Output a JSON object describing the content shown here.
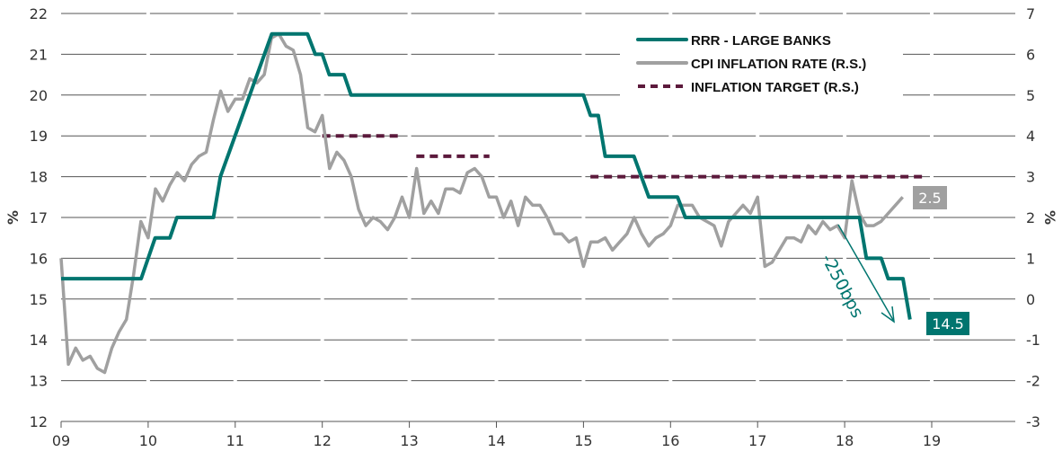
{
  "chart_data": {
    "type": "line",
    "xlabel": "",
    "ylabel_left": "%",
    "ylabel_right": "%",
    "x_ticks": [
      "09",
      "10",
      "11",
      "12",
      "13",
      "14",
      "15",
      "16",
      "17",
      "18",
      "19"
    ],
    "x_range": [
      2009,
      2019
    ],
    "y_left_range": [
      12,
      22
    ],
    "y_left_ticks": [
      "12",
      "13",
      "14",
      "15",
      "16",
      "17",
      "18",
      "19",
      "20",
      "21",
      "22"
    ],
    "y_right_range": [
      -3,
      7
    ],
    "y_right_ticks": [
      "-3",
      "-2",
      "-1",
      "0",
      "1",
      "2",
      "3",
      "4",
      "5",
      "6",
      "7"
    ],
    "grid": true,
    "legend_position": "top-right",
    "series": [
      {
        "name": "RRR - LARGE BANKS",
        "axis": "left",
        "color": "#00756f",
        "points": [
          [
            2009.0,
            15.5
          ],
          [
            2009.92,
            15.5
          ],
          [
            2010.08,
            16.5
          ],
          [
            2010.25,
            16.5
          ],
          [
            2010.33,
            17
          ],
          [
            2010.75,
            17
          ],
          [
            2010.83,
            18
          ],
          [
            2011.42,
            21.5
          ],
          [
            2011.83,
            21.5
          ],
          [
            2011.92,
            21
          ],
          [
            2012.0,
            21
          ],
          [
            2012.08,
            20.5
          ],
          [
            2012.25,
            20.5
          ],
          [
            2012.33,
            20
          ],
          [
            2015.0,
            20
          ],
          [
            2015.08,
            19.5
          ],
          [
            2015.17,
            19.5
          ],
          [
            2015.25,
            18.5
          ],
          [
            2015.58,
            18.5
          ],
          [
            2015.75,
            17.5
          ],
          [
            2016.08,
            17.5
          ],
          [
            2016.17,
            17
          ],
          [
            2018.17,
            17
          ],
          [
            2018.25,
            16
          ],
          [
            2018.42,
            16
          ],
          [
            2018.5,
            15.5
          ],
          [
            2018.67,
            15.5
          ],
          [
            2018.75,
            14.5
          ]
        ]
      },
      {
        "name": "CPI INFLATION RATE (R.S.)",
        "axis": "right",
        "color": "#a0a0a0",
        "start": 2009.0,
        "step_months": 1,
        "values": [
          1.0,
          -1.6,
          -1.2,
          -1.5,
          -1.4,
          -1.7,
          -1.8,
          -1.2,
          -0.8,
          -0.5,
          0.6,
          1.9,
          1.5,
          2.7,
          2.4,
          2.8,
          3.1,
          2.9,
          3.3,
          3.5,
          3.6,
          4.4,
          5.1,
          4.6,
          4.9,
          4.9,
          5.4,
          5.3,
          5.5,
          6.4,
          6.5,
          6.2,
          6.1,
          5.5,
          4.2,
          4.1,
          4.5,
          3.2,
          3.6,
          3.4,
          3.0,
          2.2,
          1.8,
          2.0,
          1.9,
          1.7,
          2.0,
          2.5,
          2.0,
          3.2,
          2.1,
          2.4,
          2.1,
          2.7,
          2.7,
          2.6,
          3.1,
          3.2,
          3.0,
          2.5,
          2.5,
          2.0,
          2.4,
          1.8,
          2.5,
          2.3,
          2.3,
          2.0,
          1.6,
          1.6,
          1.4,
          1.5,
          0.8,
          1.4,
          1.4,
          1.5,
          1.2,
          1.4,
          1.6,
          2.0,
          1.6,
          1.3,
          1.5,
          1.6,
          1.8,
          2.3,
          2.3,
          2.3,
          2.0,
          1.9,
          1.8,
          1.3,
          1.9,
          2.1,
          2.3,
          2.1,
          2.5,
          0.8,
          0.9,
          1.2,
          1.5,
          1.5,
          1.4,
          1.8,
          1.6,
          1.9,
          1.7,
          1.8,
          1.5,
          2.9,
          2.1,
          1.8,
          1.8,
          1.9,
          2.1,
          2.3,
          2.5
        ]
      },
      {
        "name": "INFLATION TARGET (R.S.)",
        "axis": "right",
        "color": "#5c1a3c",
        "dashed": true,
        "segments": [
          [
            [
              2012.0,
              4.0
            ],
            [
              2012.92,
              4.0
            ]
          ],
          [
            [
              2013.08,
              3.5
            ],
            [
              2013.92,
              3.5
            ]
          ],
          [
            [
              2015.08,
              3.0
            ],
            [
              2018.92,
              3.0
            ]
          ]
        ]
      }
    ],
    "annotations": {
      "rrr_change": "-250bps",
      "cpi_last": "2.5",
      "rrr_last": "14.5"
    }
  }
}
